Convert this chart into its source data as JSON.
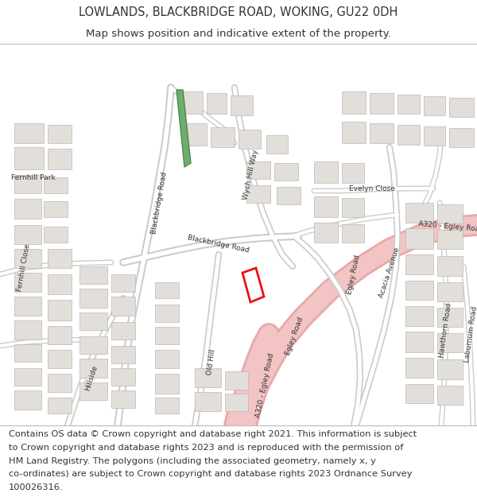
{
  "title_line1": "LOWLANDS, BLACKBRIDGE ROAD, WOKING, GU22 0DH",
  "title_line2": "Map shows position and indicative extent of the property.",
  "footer_lines": [
    "Contains OS data © Crown copyright and database right 2021. This information is subject",
    "to Crown copyright and database rights 2023 and is reproduced with the permission of",
    "HM Land Registry. The polygons (including the associated geometry, namely x, y",
    "co-ordinates) are subject to Crown copyright and database rights 2023 Ordnance Survey",
    "100026316."
  ],
  "map_bg": "#f0eeeb",
  "road_major_fill": "#f2c4c4",
  "road_major_edge": "#e8a8a8",
  "road_minor_fill": "#ffffff",
  "road_minor_edge": "#cccccc",
  "building_fill": "#e2deda",
  "building_edge": "#bbb8b4",
  "green_fill": "#6fad6f",
  "green_edge": "#4a8a4a",
  "plot_edge": "#ee1111",
  "text_dark": "#333333",
  "title_fs": 10.5,
  "subtitle_fs": 9.5,
  "footer_fs": 8.2,
  "label_fs": 6.5
}
